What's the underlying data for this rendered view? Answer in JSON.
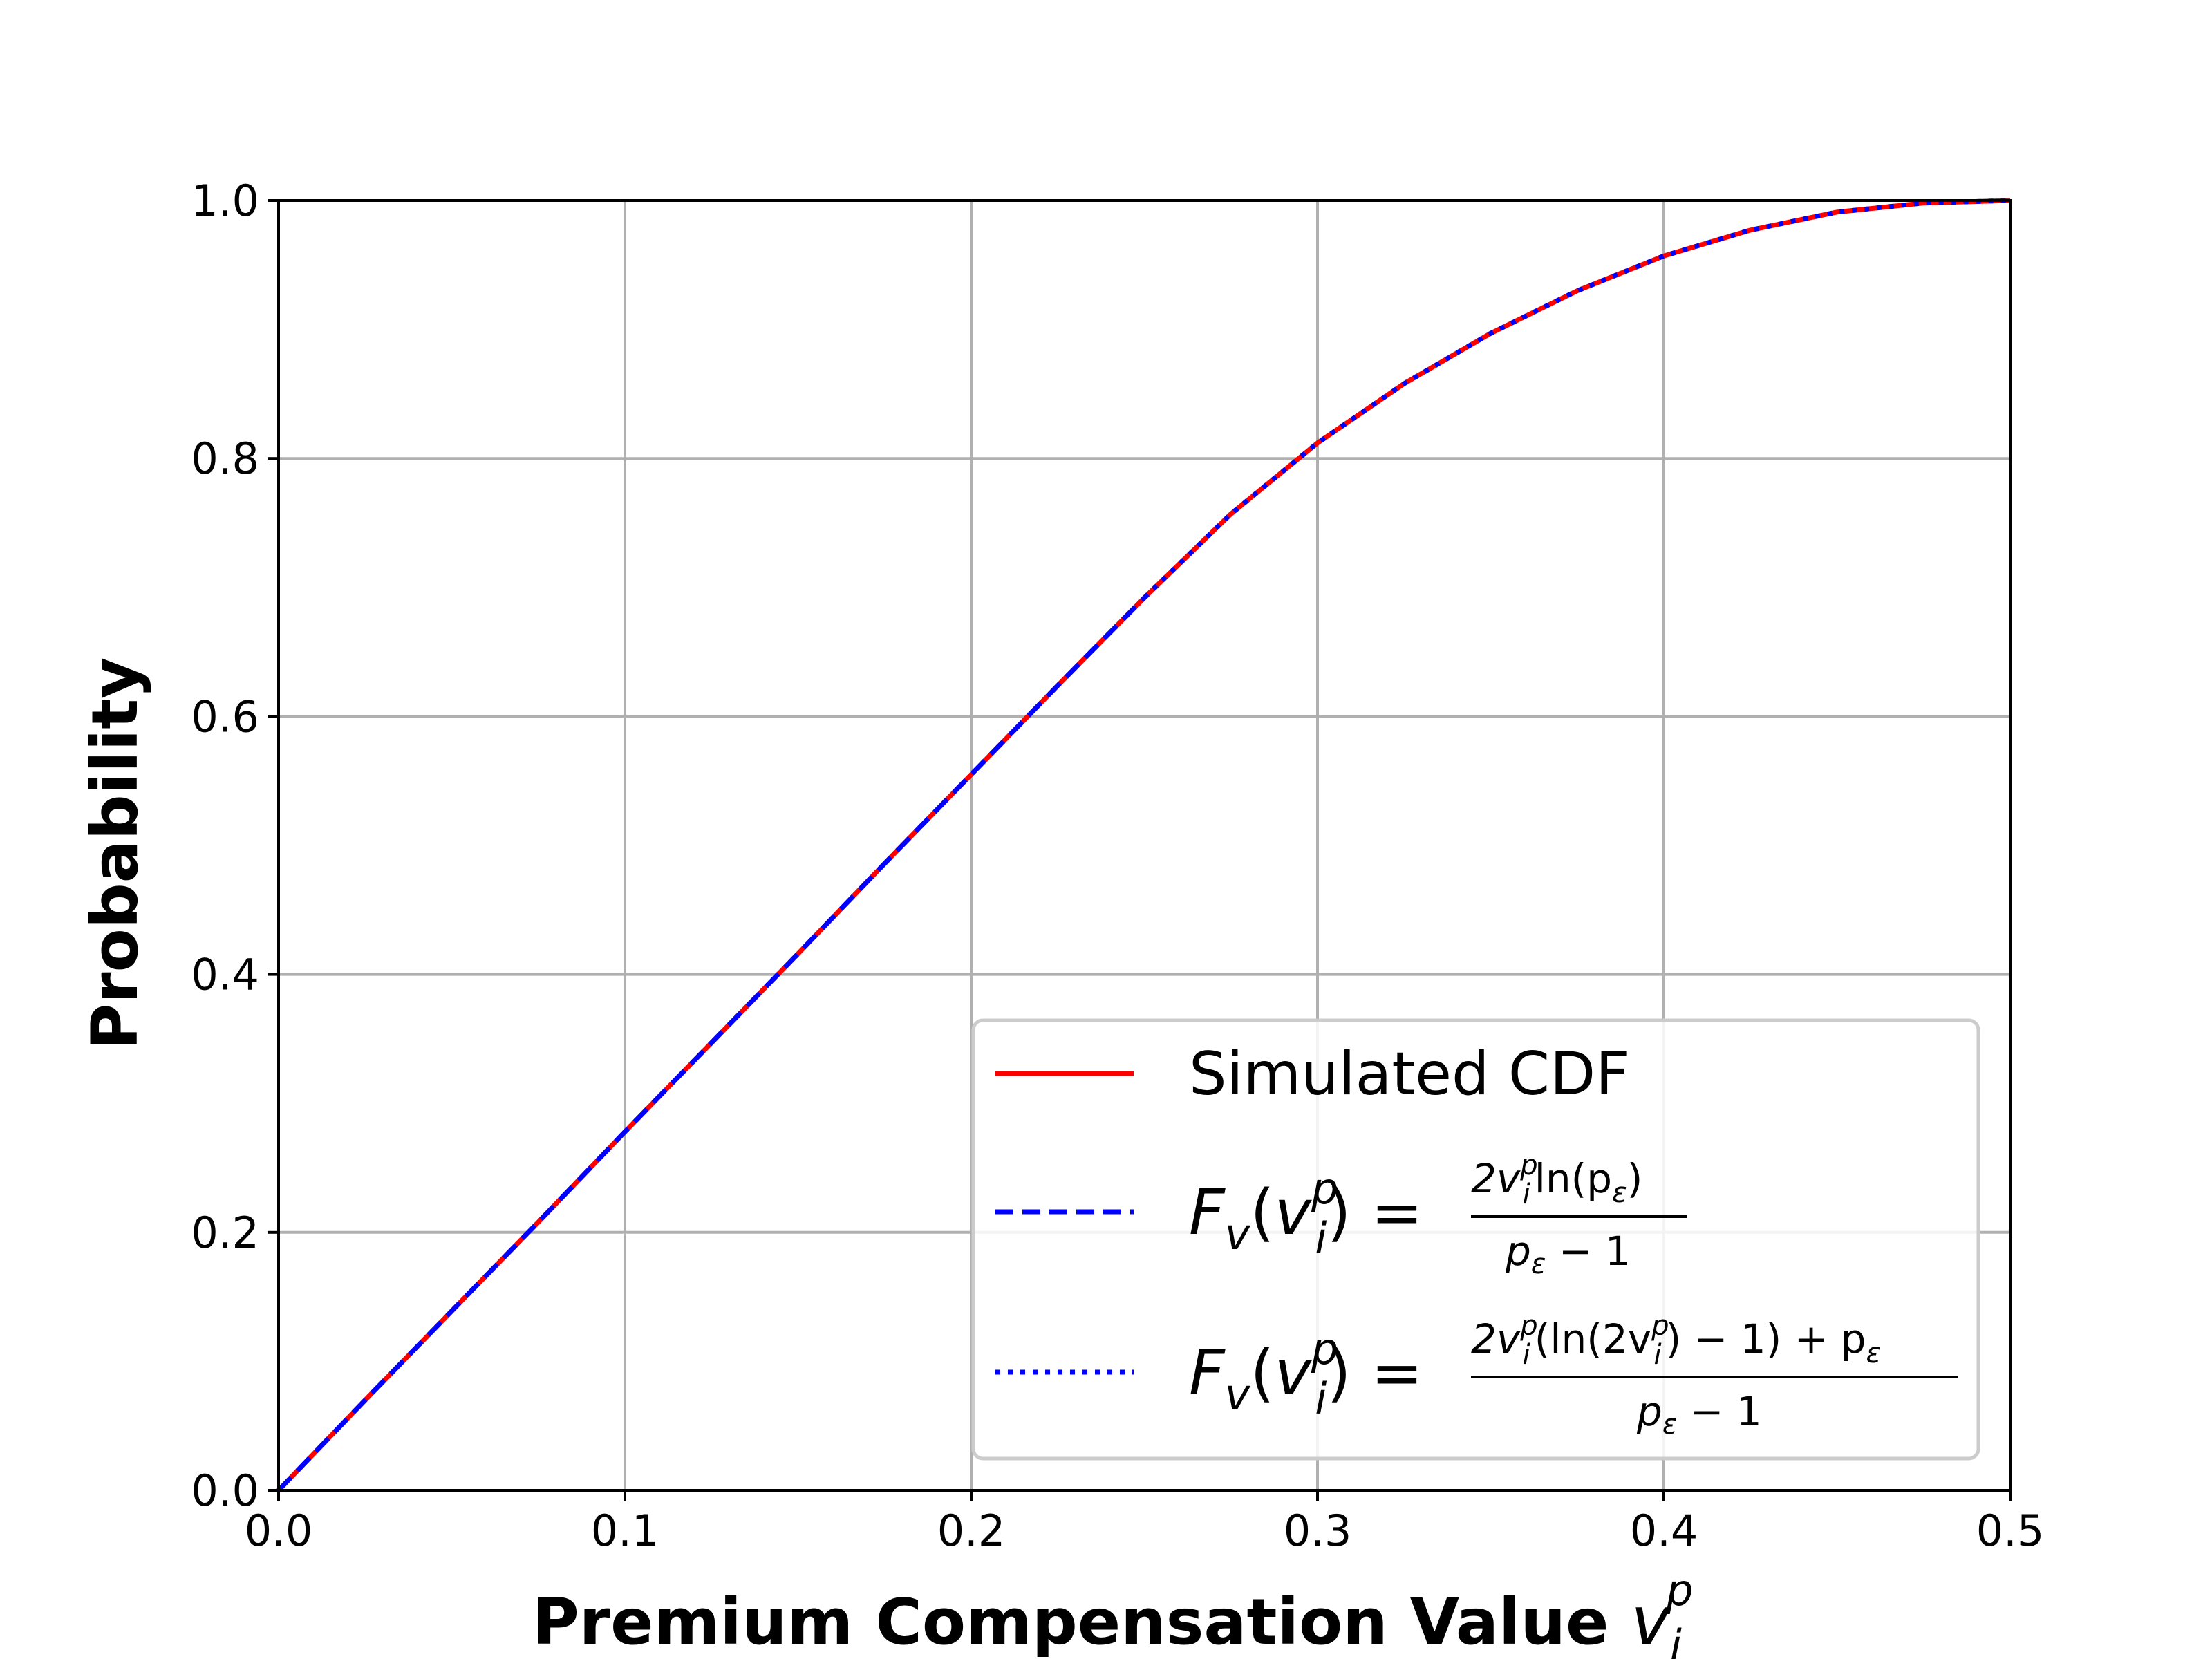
{
  "chart_data": {
    "type": "line",
    "xlabel": "Premium Compensation Value",
    "xlabel_symbol": "v",
    "xlabel_sub": "i",
    "xlabel_sup": "p",
    "ylabel": "Probability",
    "xlim": [
      0.0,
      0.5
    ],
    "ylim": [
      0.0,
      1.0
    ],
    "x_ticks": [
      "0.0",
      "0.1",
      "0.2",
      "0.3",
      "0.4",
      "0.5"
    ],
    "y_ticks": [
      "0.0",
      "0.2",
      "0.4",
      "0.6",
      "0.8",
      "1.0"
    ],
    "x_tick_values": [
      0.0,
      0.1,
      0.2,
      0.3,
      0.4,
      0.5
    ],
    "y_tick_values": [
      0.0,
      0.2,
      0.4,
      0.6,
      0.8,
      1.0
    ],
    "grid": true,
    "legend_position": "lower-right",
    "x": [
      0.0,
      0.025,
      0.05,
      0.075,
      0.1,
      0.125,
      0.15,
      0.175,
      0.2,
      0.225,
      0.25,
      0.275,
      0.3,
      0.325,
      0.35,
      0.375,
      0.4,
      0.425,
      0.45,
      0.475,
      0.5
    ],
    "series": [
      {
        "name": "Simulated CDF",
        "color": "#ff0000",
        "style": "solid",
        "values": [
          0.0,
          0.07,
          0.139,
          0.208,
          0.278,
          0.347,
          0.416,
          0.486,
          0.555,
          0.624,
          0.692,
          0.757,
          0.812,
          0.858,
          0.897,
          0.93,
          0.957,
          0.977,
          0.991,
          0.998,
          1.0
        ]
      },
      {
        "name": "F_v(v_i^p) = 2v_i^p ln(p_ε) / (p_ε − 1)",
        "color": "#0000ff",
        "style": "dashed",
        "values": [
          0.0,
          0.07,
          0.139,
          0.208,
          0.278,
          0.347,
          0.416,
          0.486,
          0.555,
          0.624,
          0.692,
          null,
          null,
          null,
          null,
          null,
          null,
          null,
          null,
          null,
          null
        ]
      },
      {
        "name": "F_v(v_i^p) = (2v_i^p (ln(2v_i^p) − 1) + p_ε) / (p_ε − 1)",
        "color": "#0000ff",
        "style": "dotted",
        "values": [
          null,
          null,
          null,
          null,
          null,
          null,
          null,
          null,
          null,
          null,
          0.692,
          0.757,
          0.812,
          0.858,
          0.897,
          0.93,
          0.957,
          0.977,
          0.991,
          0.998,
          1.0
        ]
      }
    ],
    "legend": {
      "entry1": "Simulated CDF",
      "entry2_lhs_F": "F",
      "entry2_lhs_sub": "v",
      "entry2_lhs_open": "(",
      "entry2_lhs_var": "v",
      "entry2_lhs_var_sub": "i",
      "entry2_lhs_var_sup": "p",
      "entry2_lhs_close": ") =",
      "entry2_num": "2v",
      "entry2_num_sub": "i",
      "entry2_num_sup": "p",
      "entry2_num_rest": "ln(p",
      "entry2_num_eps": "ε",
      "entry2_num_end": ")",
      "entry2_den": "p",
      "entry2_den_eps": "ε",
      "entry2_den_rest": " − 1",
      "entry3_num_a": "2v",
      "entry3_num_a_sub": "i",
      "entry3_num_a_sup": "p",
      "entry3_num_b": "(ln(2v",
      "entry3_num_b_sub": "i",
      "entry3_num_b_sup": "p",
      "entry3_num_c": ") − 1) + p",
      "entry3_num_eps": "ε",
      "entry3_den": "p",
      "entry3_den_eps": "ε",
      "entry3_den_rest": " − 1"
    }
  }
}
